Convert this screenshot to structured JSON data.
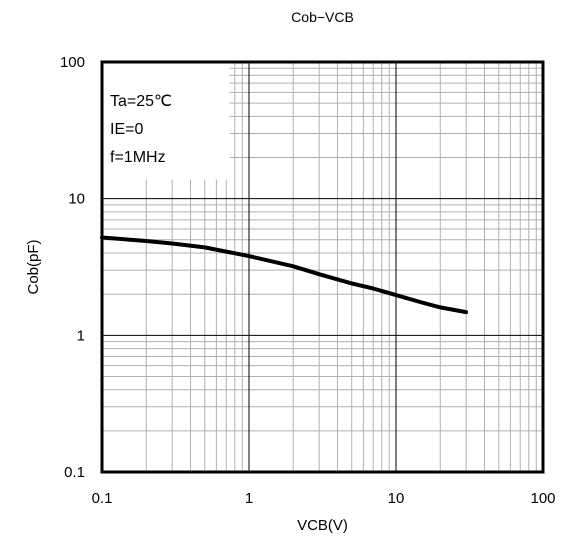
{
  "chart_data": {
    "type": "line",
    "title": "Cob−VCB",
    "xlabel": "VCB(V)",
    "ylabel": "Cob(pF)",
    "x_scale": "log",
    "y_scale": "log",
    "xlim": [
      0.1,
      100
    ],
    "ylim": [
      0.1,
      100
    ],
    "grid": true,
    "x_ticks": [
      "0.1",
      "1",
      "10",
      "100"
    ],
    "y_ticks": [
      "0.1",
      "1",
      "10",
      "100"
    ],
    "annotations": [
      "Ta=25℃",
      "IE=0",
      "f=1MHz"
    ],
    "series": [
      {
        "x": [
          0.1,
          0.2,
          0.3,
          0.5,
          0.7,
          1,
          2,
          3,
          5,
          7,
          10,
          15,
          20,
          30
        ],
        "y": [
          5.2,
          4.9,
          4.7,
          4.4,
          4.1,
          3.8,
          3.2,
          2.8,
          2.4,
          2.2,
          1.97,
          1.74,
          1.6,
          1.48
        ]
      }
    ],
    "colors": {
      "line": "#000000",
      "grid": "#b0b0b0",
      "frame": "#000000"
    }
  }
}
